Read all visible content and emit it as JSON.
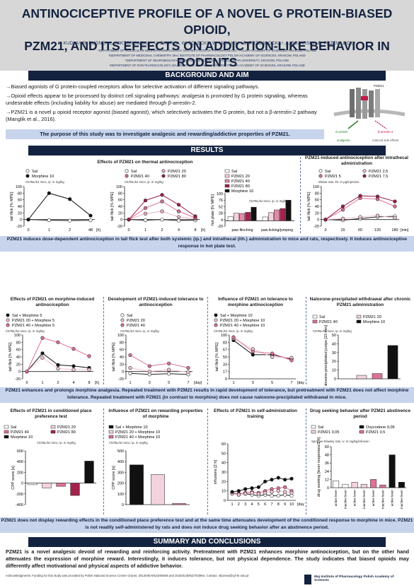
{
  "header": {
    "title_line1": "ANTINOCICEPTIVE PROFILE OF A NOVEL G PROTEIN-BIASED OPIOID,",
    "title_line2": "PZM21, AND ITS EFFECTS ON ADDICTION-LIKE BEHAVIOR IN RODENTS",
    "authors": "L. KUDLA¹, R. BUGNO², L. WIKTOROWSKA¹, U. SKUPIO¹, W. SOLECKI³, W. MAKUCH⁴, B. PRZEWLOCKA⁴, A. BOJARSKI², R. PRZEWLOCKI¹",
    "affiliations": [
      "¹DEPARTMENT OF MOLECULAR NEUROPHARMACOLOGY, MAJ INSTITUTE OF PHARMACOLOGY POLISH ACADEMY OF SCIENCES, KRAKOW, POLAND",
      "²DEPARTMENT OF MEDICINAL CHEMISTRY, MAJ INSTITUTE OF PHARMACOLOGY POLISH ACADEMY OF SCIENCES, KRAKOW, POLAND",
      "³DEPARTMENT OF NEUROBIOLOGY AND NEUROPSYCHOLOGY, JAGIELLONIAN UNIVERSITY, KRAKOW, POLAND",
      "⁴DEPARTMENT OF PAIN PHARMACOLOGY, MAJ INSTITUTE OF PHARMACOLOGY POLISH ACADEMY OF SCIENCES, KRAKOW, POLAND"
    ]
  },
  "background": {
    "heading": "BACKGROUND AND AIM",
    "paragraphs": [
      "→Biased agonists of G protein-coupled receptors allow for selective activation of different signaling pathways.",
      "→Opioid effects appear to be processed by distinct cell signaling pathways: analgesia is promoted by G protein signaling, whereas undesirable effects (including liability for abuse) are mediated through β-arrestin-2.",
      "→PZM21 is a novel μ opioid receptor agonist (biased agonist), which selectively activates the G protein, but not a β-arrestin-2 pathway (Manglik et al., 2016)."
    ],
    "purpose": "The purpose of this study was to investigate analgesic and rewarding/addictive properties of PZM21.",
    "diagram_labels": {
      "drug": "PZM21",
      "g_protein": "G protein",
      "arrestin": "β-arrestin-2",
      "analgesia": "analgesia",
      "side_effects": "reduced side effects"
    }
  },
  "results": {
    "heading": "RESULTS",
    "panel_titles": {
      "thermal": "Effects of PZM21 on thermal antinociception",
      "intrathecal": "PZM21-induced antinociception after intrathecal administration",
      "morphine": "Effects of PZM21 on morphine-induced antinociception",
      "tolerance": "Development of PZM21-induced tolerance to antinociception",
      "morph_tol": "Influence of PZM21 on tolerance to morphine antinociception",
      "naloxone": "Naloxone-precipitated withdrawal after chronic PZM21 administration",
      "cpp": "Effects of PZM21 in conditioned place preference test",
      "reward": "Influence of PZM21 on rewarding properties of morphine",
      "selfadmin": "Effects of PZM21 in self-administration training",
      "seeking": "Drug seeking behavior after PZM21 abstinence period"
    },
    "notes": {
      "mice_ip": "C57BL/6J mice, ip. in mg/kg",
      "rats_ith": "Wistar rats, ith. in μg/injection",
      "rats_sd": "Sprague-Dawley rats, iv. in mg/kg/infusion"
    },
    "strip1": "PZM21 induces dose-dependent antinociception in tail flick test after both systemic (ip.) and intrathecal (ith.) administration to mice and rats, respectively. It induces antinociceptive response in hot plate test.",
    "strip2": "PZM21 enhances and prolongs morphine analgesia. Repeated treatment with PZM21 results in rapid development of tolerance, but pretreatment with PZM21 does not affect morphine tolerance. Repeated treatment with PZM21 (in contrast to morphine) does not cause naloxone-precipitated withdrawal in mice.",
    "strip3": "PZM21 does not display rewarding effects in the conditioned place preference test and at the same time attenuates development of the conditioned response to morphine in mice. PZM21 is not readily self-administered by rats and does not induce drug seeking behavior after an abstinence period."
  },
  "summary": {
    "heading": "SUMMARY AND CONCLUSIONS",
    "text": "PZM21 is a novel analgesic devoid of rewarding and reinforcing activity. Pretreatment with PZM21 enhances morphine antinociception, but on the other hand attenuates the expression of morphine reward. Interestingly, it induces tolerance, but not physical dependence. The study indicates that biased opioids may differently affect motivational and physical aspects of addictive behavior.",
    "ack": "Acknowledgments: Funding for this study was provided by Polish National Science Centre Grants: 2013/08/A/NZ3/00848 and 2018/31/B/NZ7/03954. Contact: nfprzew@cyf-kr.edu.pl",
    "logo_text": "Maj Institute of Pharmacology Polish Academy of Sciences"
  },
  "chart_data": [
    {
      "type": "line",
      "title": "Effects of PZM21 on thermal antinociception",
      "ylabel": "tail flick [% MPE]",
      "x": [
        "0",
        "1",
        "2",
        "48"
      ],
      "xunit": "[h]",
      "ylim": [
        -20,
        100
      ],
      "series": [
        {
          "name": "Sal",
          "values": [
            0,
            -2,
            -3,
            -2
          ],
          "color": "#ffffff"
        },
        {
          "name": "Morphine 10",
          "values": [
            0,
            80,
            62,
            12
          ],
          "color": "#111111"
        }
      ]
    },
    {
      "type": "line",
      "ylabel": "tail flick [% MPE]",
      "x": [
        "0",
        "1",
        "2",
        "4",
        "8"
      ],
      "xunit": "[h]",
      "ylim": [
        -20,
        100
      ],
      "series": [
        {
          "name": "Sal",
          "values": [
            0,
            -2,
            0,
            -3,
            -2
          ],
          "color": "#ffffff"
        },
        {
          "name": "PZM21 20",
          "values": [
            0,
            18,
            25,
            8,
            3
          ],
          "color": "#e7b3c6"
        },
        {
          "name": "PZM21 40",
          "values": [
            0,
            35,
            55,
            25,
            5
          ],
          "color": "#d86e93"
        },
        {
          "name": "PZM21 80",
          "values": [
            0,
            58,
            75,
            45,
            10
          ],
          "color": "#9c1e46"
        }
      ]
    },
    {
      "type": "bar",
      "ylabel": "hot plate [% MPE]",
      "categories": [
        "paw flinching",
        "paw licking/jumping"
      ],
      "ylim": [
        -20,
        100
      ],
      "series": [
        {
          "name": "Sal",
          "values": [
            15,
            14
          ],
          "color": "#ffffff"
        },
        {
          "name": "PZM21 20",
          "values": [
            28,
            30
          ],
          "color": "#f3d2de"
        },
        {
          "name": "PZM21 40",
          "values": [
            27,
            40
          ],
          "color": "#e28aa9"
        },
        {
          "name": "PZM21 80",
          "values": [
            31,
            45
          ],
          "color": "#a3234c"
        },
        {
          "name": "Morphine 10",
          "values": [
            50,
            76
          ],
          "color": "#111111"
        }
      ]
    },
    {
      "type": "line",
      "ylabel": "tail flick [% MPE]",
      "x": [
        "0",
        "15",
        "60",
        "120",
        "180"
      ],
      "xunit": "[min]",
      "ylim": [
        -20,
        100
      ],
      "series": [
        {
          "name": "Sal",
          "values": [
            0,
            -2,
            3,
            8,
            10
          ],
          "color": "#ffffff"
        },
        {
          "name": "PZM21 2,5",
          "values": [
            0,
            3,
            8,
            12,
            5
          ],
          "color": "#f0c4d4"
        },
        {
          "name": "PZM21 5",
          "values": [
            0,
            30,
            65,
            62,
            40
          ],
          "color": "#dc7296"
        },
        {
          "name": "PZM21 7,5",
          "values": [
            0,
            40,
            72,
            70,
            55
          ],
          "color": "#9c1e46"
        }
      ]
    },
    {
      "type": "line",
      "ylabel": "tail flick [% MPE]",
      "x": [
        "0",
        "1",
        "2",
        "4",
        "8"
      ],
      "xunit": "[h]",
      "ylim": [
        -20,
        100
      ],
      "series": [
        {
          "name": "Sal + Morphine 5",
          "values": [
            0,
            50,
            18,
            15,
            10
          ],
          "color": "#111111"
        },
        {
          "name": "PZM21 20 + Morphine 5",
          "values": [
            0,
            38,
            8,
            5,
            5
          ],
          "color": "#f0c4d4"
        },
        {
          "name": "PZM21 40 + Morphine 5",
          "values": [
            0,
            92,
            80,
            62,
            42
          ],
          "color": "#dc7296"
        }
      ]
    },
    {
      "type": "line",
      "ylabel": "tail flick [% MPE]",
      "x": [
        "1",
        "3",
        "5",
        "7"
      ],
      "xunit": "[day]",
      "ylim": [
        -20,
        100
      ],
      "series": [
        {
          "name": "Sal",
          "values": [
            -5,
            -8,
            -6,
            -8
          ],
          "color": "#ffffff"
        },
        {
          "name": "PZM21 20",
          "values": [
            10,
            0,
            5,
            -2
          ],
          "color": "#f0c4d4"
        },
        {
          "name": "PZM21 40",
          "values": [
            45,
            15,
            22,
            10
          ],
          "color": "#dc7296"
        }
      ]
    },
    {
      "type": "line",
      "ylabel": "tail flick [% MPE]",
      "x": [
        "1",
        "3",
        "5",
        "7"
      ],
      "xunit": "[day]",
      "ylim": [
        0,
        100
      ],
      "series": [
        {
          "name": "Sal + Morphine 10",
          "values": [
            88,
            55,
            55,
            45
          ],
          "color": "#111111"
        },
        {
          "name": "PZM21 20 + Morphine 10",
          "values": [
            92,
            68,
            50,
            48
          ],
          "color": "#f0c4d4"
        },
        {
          "name": "PZM21 40 + Morphine 10",
          "values": [
            95,
            62,
            58,
            42
          ],
          "color": "#dc7296"
        }
      ]
    },
    {
      "type": "bar",
      "ylabel": "naloxone-precipitated jumps [15 min]",
      "categories": [
        "Sal",
        "PZM21 20",
        "PZM21 40",
        "Morphine 10"
      ],
      "ylim": [
        0,
        50
      ],
      "series": [
        {
          "name": "",
          "values": [
            0,
            4,
            6,
            38
          ],
          "colors": [
            "#ffffff",
            "#f3d2de",
            "#dc7296",
            "#111111"
          ]
        }
      ]
    },
    {
      "type": "bar",
      "ylabel": "CPP score [s]",
      "categories": [
        "Sal",
        "PZM21 20",
        "PZM21 40",
        "PZM21 80",
        "Morphine 10"
      ],
      "ylim": [
        -400,
        600
      ],
      "series": [
        {
          "name": "",
          "values": [
            -30,
            -90,
            -60,
            -230,
            410
          ],
          "colors": [
            "#ffffff",
            "#f3d2de",
            "#dc7296",
            "#a3234c",
            "#111111"
          ]
        }
      ]
    },
    {
      "type": "bar",
      "ylabel": "CPP score [s]",
      "categories": [
        "Sal + Morphine 10",
        "PZM21 20 + Morphine 10",
        "PZM21 40 + Morphine 10"
      ],
      "ylim": [
        0,
        500
      ],
      "series": [
        {
          "name": "",
          "values": [
            370,
            280,
            10
          ],
          "colors": [
            "#111111",
            "#f3d2de",
            "#dc7296"
          ]
        }
      ]
    },
    {
      "type": "line",
      "ylabel": "infusions [2 h]",
      "x": [
        "1",
        "2",
        "3",
        "4",
        "5",
        "6",
        "7",
        "8",
        "9",
        "10"
      ],
      "xunit": "[day]",
      "ylim": [
        0,
        60
      ],
      "series": [
        {
          "name": "Sal",
          "values": [
            8,
            6,
            7,
            6,
            5,
            6,
            5,
            5,
            6,
            5
          ],
          "color": "#ffffff"
        },
        {
          "name": "PZM21 0,5",
          "values": [
            8,
            7,
            8,
            9,
            8,
            10,
            12,
            13,
            14,
            10
          ],
          "color": "#dc7296"
        },
        {
          "name": "PZM21 0,05",
          "values": [
            7,
            6,
            7,
            8,
            7,
            8,
            9,
            10,
            9,
            8
          ],
          "color": "#f0c4d4"
        },
        {
          "name": "Oxycodone 0,06",
          "values": [
            9,
            10,
            12,
            13,
            14,
            20,
            22,
            24,
            22,
            23
          ],
          "color": "#111111"
        }
      ]
    },
    {
      "type": "bar",
      "ylabel": "drug seeking [lever responses/2 h]",
      "categories": [
        "active lever",
        "inactive lever",
        "active lever",
        "inactive lever",
        "active lever",
        "inactive lever",
        "active lever",
        "inactive lever"
      ],
      "ylim": [
        0,
        60
      ],
      "series": [
        {
          "name": "",
          "values": [
            10,
            5,
            8,
            5,
            12,
            4,
            48,
            8
          ],
          "colors": [
            "#ffffff",
            "#ffffff",
            "#f3d2de",
            "#f3d2de",
            "#dc7296",
            "#dc7296",
            "#111111",
            "#111111"
          ]
        }
      ]
    }
  ]
}
